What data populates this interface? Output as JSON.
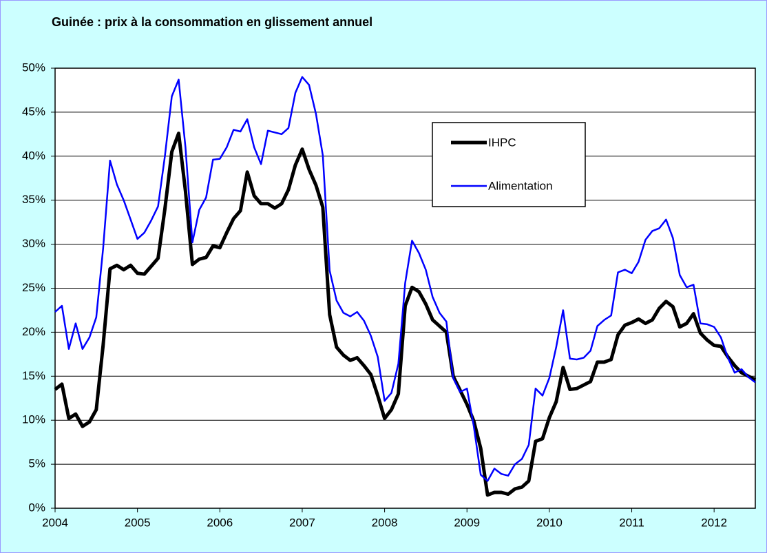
{
  "chart_data": {
    "type": "line",
    "title": "Guinée : prix à la consommation en glissement annuel",
    "x": [
      2004,
      2004.083,
      2004.167,
      2004.25,
      2004.333,
      2004.417,
      2004.5,
      2004.583,
      2004.667,
      2004.75,
      2004.833,
      2004.917,
      2005,
      2005.083,
      2005.167,
      2005.25,
      2005.333,
      2005.417,
      2005.5,
      2005.583,
      2005.667,
      2005.75,
      2005.833,
      2005.917,
      2006,
      2006.083,
      2006.167,
      2006.25,
      2006.333,
      2006.417,
      2006.5,
      2006.583,
      2006.667,
      2006.75,
      2006.833,
      2006.917,
      2007,
      2007.083,
      2007.167,
      2007.25,
      2007.333,
      2007.417,
      2007.5,
      2007.583,
      2007.667,
      2007.75,
      2007.833,
      2007.917,
      2008,
      2008.083,
      2008.167,
      2008.25,
      2008.333,
      2008.417,
      2008.5,
      2008.583,
      2008.667,
      2008.75,
      2008.833,
      2008.917,
      2009,
      2009.083,
      2009.167,
      2009.25,
      2009.333,
      2009.417,
      2009.5,
      2009.583,
      2009.667,
      2009.75,
      2009.833,
      2009.917,
      2010,
      2010.083,
      2010.167,
      2010.25,
      2010.333,
      2010.417,
      2010.5,
      2010.583,
      2010.667,
      2010.75,
      2010.833,
      2010.917,
      2011,
      2011.083,
      2011.167,
      2011.25,
      2011.333,
      2011.417,
      2011.5,
      2011.583,
      2011.667,
      2011.75,
      2011.833,
      2011.917,
      2012,
      2012.083,
      2012.167,
      2012.25,
      2012.333,
      2012.417,
      2012.5
    ],
    "series": [
      {
        "name": "IHPC",
        "color": "#000000",
        "width": 5,
        "values": [
          13.5,
          14.1,
          10.2,
          10.7,
          9.3,
          9.8,
          11.2,
          18.5,
          27.2,
          27.6,
          27.1,
          27.6,
          26.7,
          26.6,
          27.5,
          28.4,
          34,
          40.5,
          42.6,
          36,
          27.7,
          28.3,
          28.5,
          29.8,
          29.6,
          31.3,
          32.9,
          33.8,
          38.2,
          35.5,
          34.6,
          34.6,
          34.1,
          34.6,
          36.2,
          39,
          40.8,
          38.5,
          36.7,
          34.2,
          22,
          18.3,
          17.4,
          16.8,
          17.1,
          16.2,
          15.2,
          12.8,
          10.2,
          11.2,
          13,
          23,
          25.1,
          24.6,
          23.2,
          21.4,
          20.7,
          20,
          15,
          13.4,
          11.8,
          9.9,
          6.8,
          1.5,
          1.8,
          1.8,
          1.6,
          2.2,
          2.4,
          3.1,
          7.6,
          7.9,
          10.3,
          12.1,
          16,
          13.5,
          13.6,
          14,
          14.4,
          16.6,
          16.6,
          16.9,
          19.7,
          20.8,
          21.1,
          21.5,
          21,
          21.4,
          22.7,
          23.5,
          22.9,
          20.6,
          21,
          22.1,
          19.9,
          19.1,
          18.5,
          18.4,
          17.2,
          16.2,
          15.4,
          15,
          14.6
        ]
      },
      {
        "name": "Alimentation",
        "color": "#0000ff",
        "width": 2.5,
        "values": [
          22.3,
          23,
          18.1,
          21,
          18.1,
          19.4,
          21.7,
          29.5,
          39.5,
          36.8,
          35,
          32.8,
          30.6,
          31.3,
          32.7,
          34.3,
          40,
          46.8,
          48.7,
          41,
          30.2,
          33.9,
          35.3,
          39.6,
          39.7,
          41,
          43,
          42.8,
          44.2,
          41,
          39.1,
          42.9,
          42.7,
          42.5,
          43.2,
          47.2,
          49,
          48.1,
          44.8,
          40.1,
          27,
          23.6,
          22.2,
          21.8,
          22.3,
          21.3,
          19.6,
          17.2,
          12.2,
          13.1,
          16.4,
          25.6,
          30.4,
          29,
          27.1,
          24,
          22.2,
          21.2,
          14.8,
          13.2,
          13.6,
          9.3,
          3.8,
          3.1,
          4.5,
          3.9,
          3.7,
          5,
          5.6,
          7.2,
          13.6,
          12.8,
          14.8,
          18.3,
          22.5,
          17,
          16.9,
          17.1,
          17.9,
          20.7,
          21.4,
          21.9,
          26.8,
          27.1,
          26.7,
          28,
          30.5,
          31.5,
          31.8,
          32.8,
          30.7,
          26.5,
          25.1,
          25.4,
          21,
          20.9,
          20.6,
          19.4,
          17.1,
          15.4,
          15.8,
          14.9,
          14.3
        ]
      }
    ],
    "xlim": [
      2004,
      2012.5
    ],
    "xticks": [
      2004,
      2005,
      2006,
      2007,
      2008,
      2009,
      2010,
      2011,
      2012
    ],
    "ylim": [
      0,
      50
    ],
    "yticks": [
      {
        "value": 0,
        "label": "0%"
      },
      {
        "value": 5,
        "label": "5%"
      },
      {
        "value": 10,
        "label": "10%"
      },
      {
        "value": 15,
        "label": "15%"
      },
      {
        "value": 20,
        "label": "20%"
      },
      {
        "value": 25,
        "label": "25%"
      },
      {
        "value": 30,
        "label": "30%"
      },
      {
        "value": 35,
        "label": "35%"
      },
      {
        "value": 40,
        "label": "40%"
      },
      {
        "value": 45,
        "label": "45%"
      },
      {
        "value": 50,
        "label": "50%"
      }
    ],
    "grid": true
  }
}
